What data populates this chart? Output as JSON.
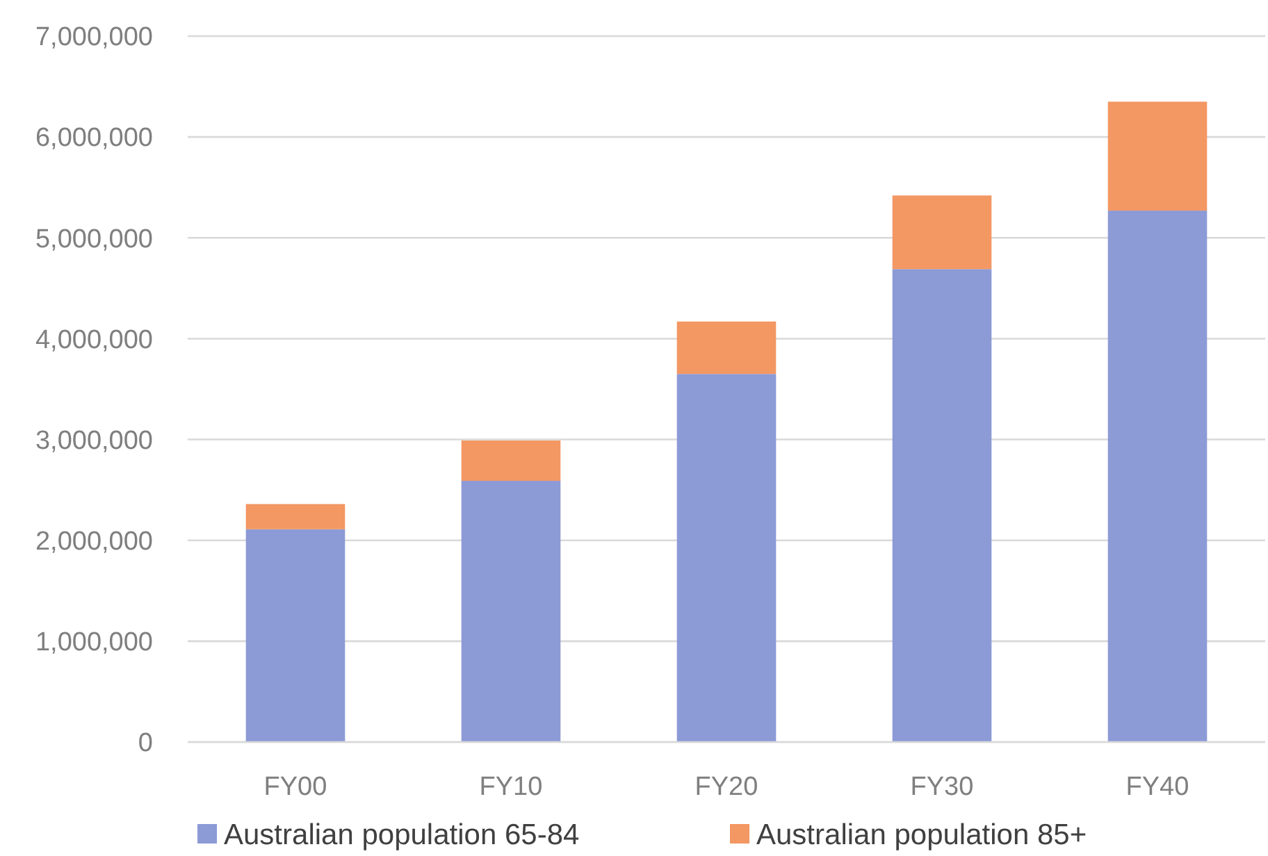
{
  "chart_data": {
    "type": "bar",
    "stacked": true,
    "categories": [
      "FY00",
      "FY10",
      "FY20",
      "FY30",
      "FY40"
    ],
    "series": [
      {
        "name": "Australian population 65-84",
        "color": "#8c9ad6",
        "values": [
          2110000,
          2590000,
          3650000,
          4690000,
          5270000
        ]
      },
      {
        "name": "Australian population 85+",
        "color": "#f39763",
        "values": [
          250000,
          400000,
          520000,
          730000,
          1080000
        ]
      }
    ],
    "ylim": [
      0,
      7000000
    ],
    "yticks": [
      {
        "value": 0,
        "label": "0"
      },
      {
        "value": 1000000,
        "label": "1,000,000"
      },
      {
        "value": 2000000,
        "label": "2,000,000"
      },
      {
        "value": 3000000,
        "label": "3,000,000"
      },
      {
        "value": 4000000,
        "label": "4,000,000"
      },
      {
        "value": 5000000,
        "label": "5,000,000"
      },
      {
        "value": 6000000,
        "label": "6,000,000"
      },
      {
        "value": 7000000,
        "label": "7,000,000"
      }
    ],
    "grid": "y",
    "legend": "bottom"
  }
}
